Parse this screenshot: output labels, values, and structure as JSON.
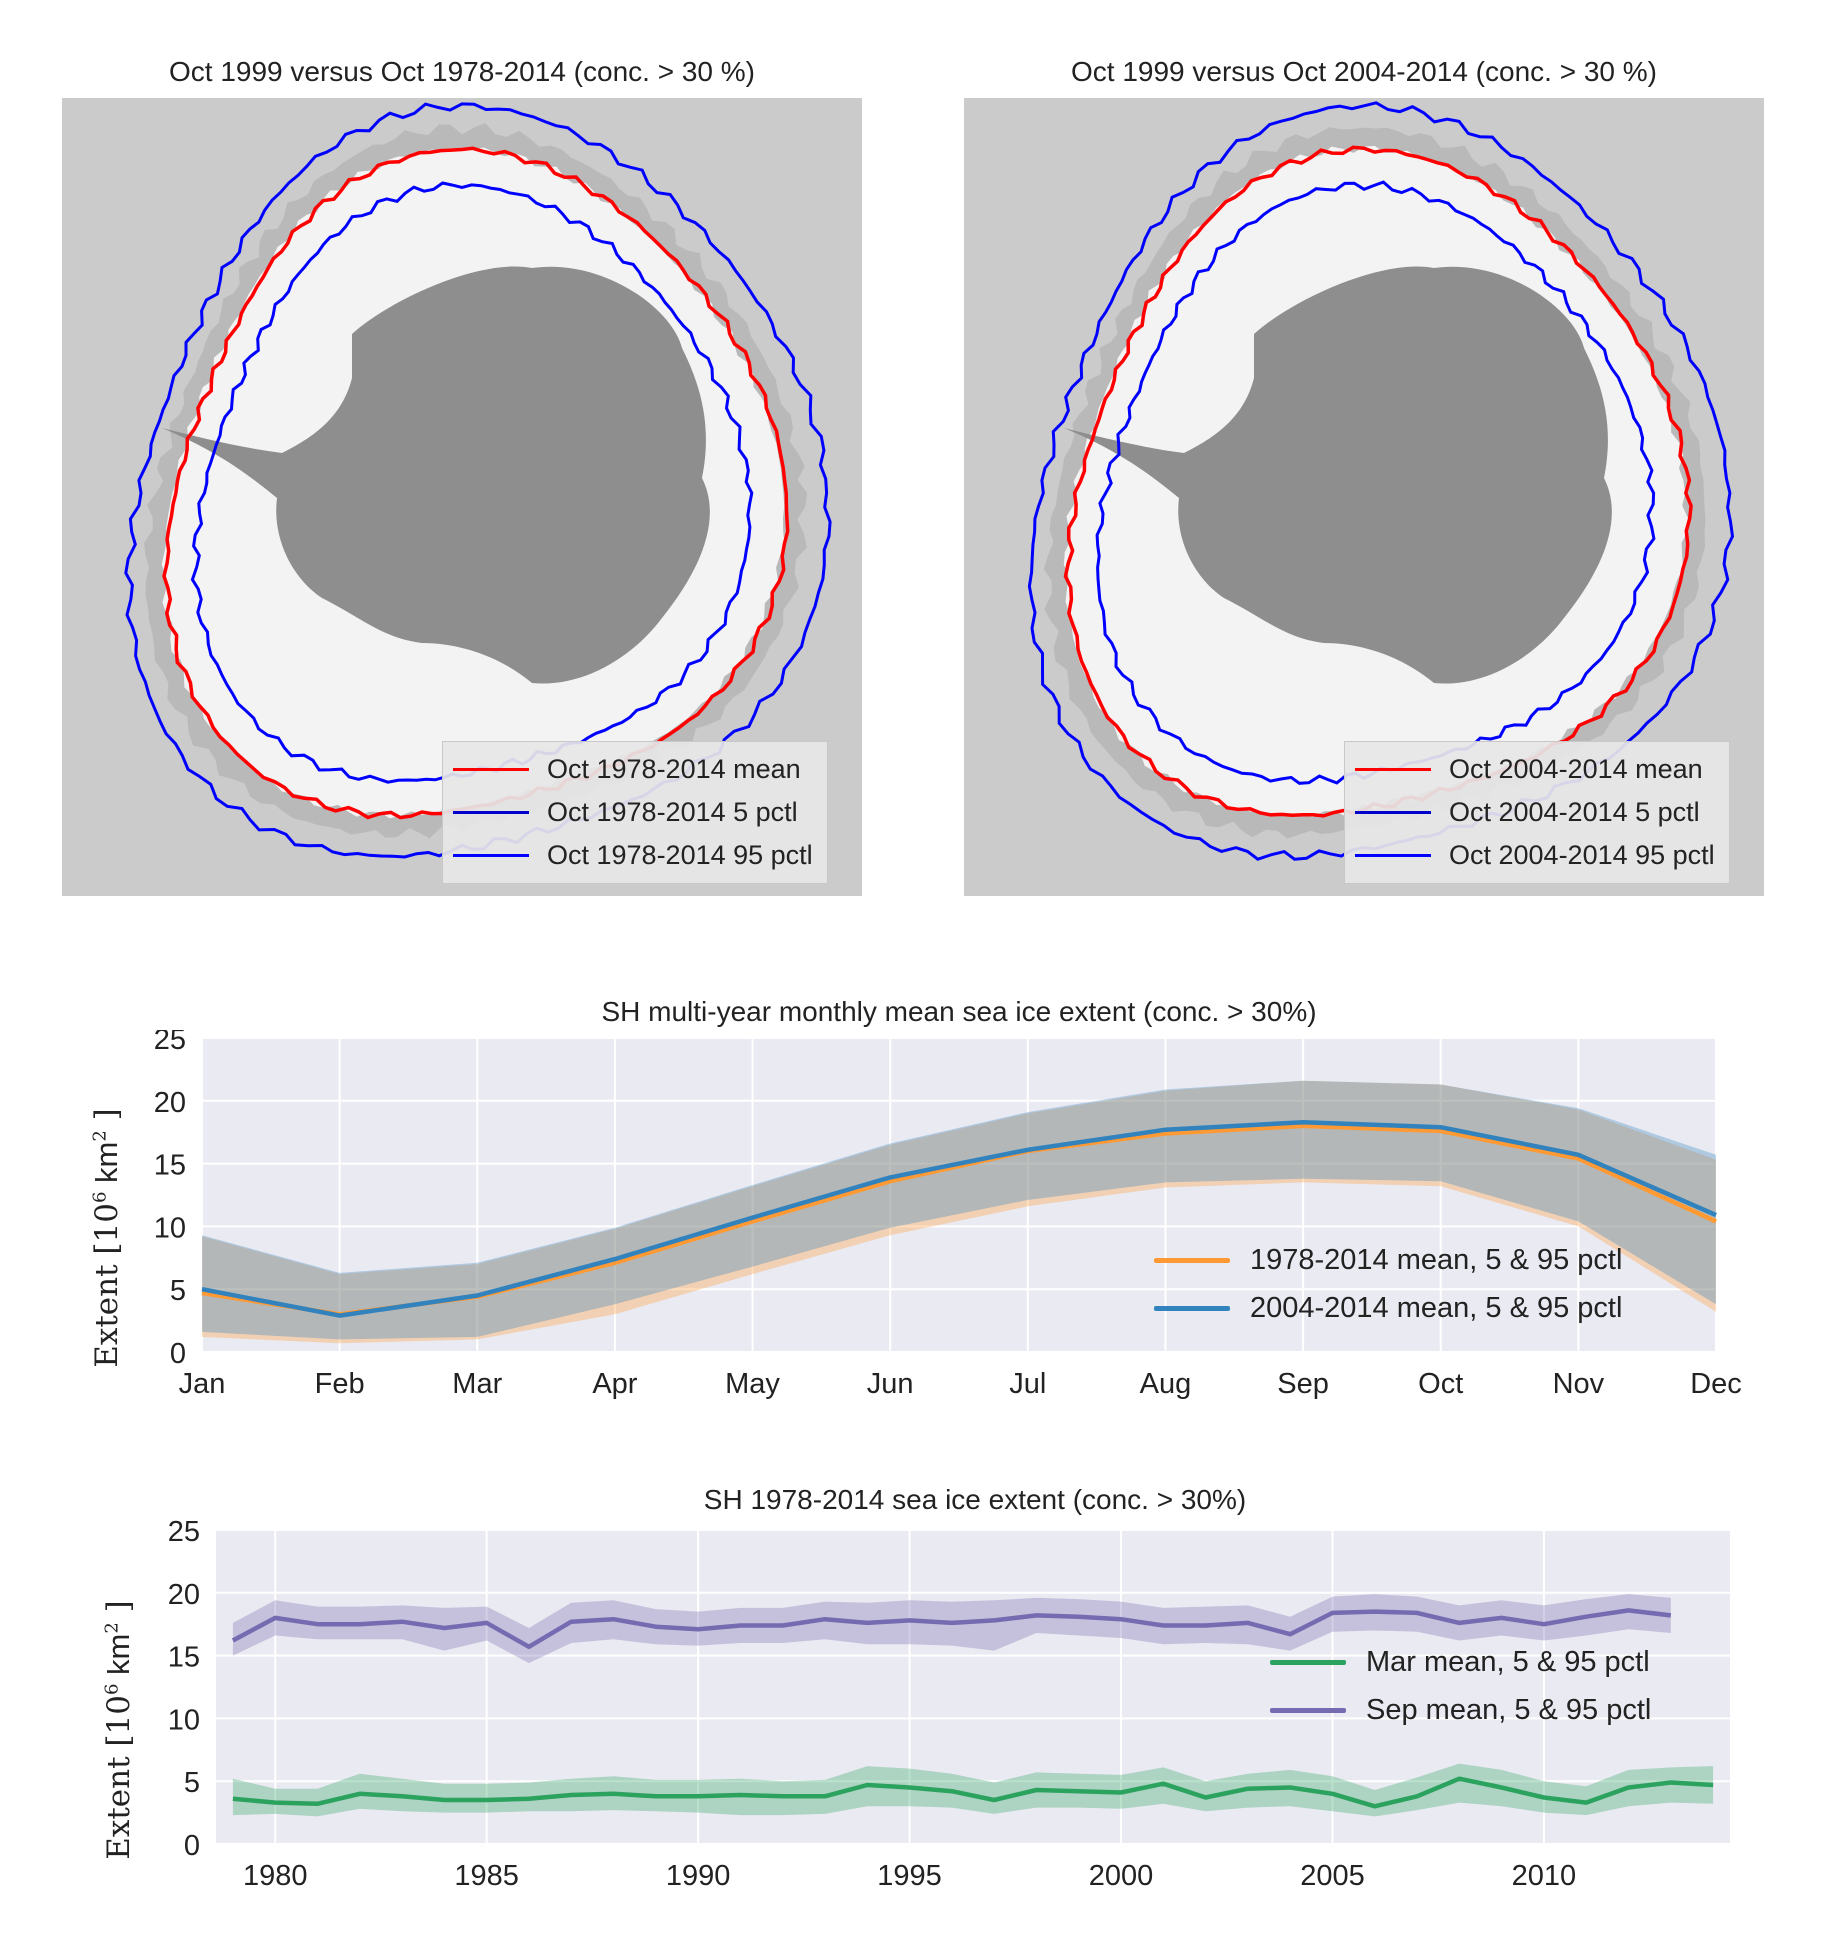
{
  "maps": [
    {
      "title": "Oct 1999 versus Oct 1978-2014 (conc. > 30 %)",
      "legend": [
        {
          "label": "Oct 1978-2014 mean",
          "color": "#ff0000"
        },
        {
          "label": "Oct 1978-2014 5 pctl",
          "color": "#0000cc"
        },
        {
          "label": "Oct 1978-2014 95 pctl",
          "color": "#0000ff"
        }
      ]
    },
    {
      "title": "Oct 1999 versus Oct 2004-2014 (conc. > 30 %)",
      "legend": [
        {
          "label": "Oct 2004-2014 mean",
          "color": "#ff0000"
        },
        {
          "label": "Oct 2004-2014 5 pctl",
          "color": "#0000cc"
        },
        {
          "label": "Oct 2004-2014 95 pctl",
          "color": "#0000ff"
        }
      ]
    }
  ],
  "colors": {
    "ocean": "#cbcbcb",
    "ice": "#f3f3f4",
    "land": "#8e8e8e",
    "mean_line": "#ff0000",
    "pctl_line": "#0000ff",
    "plot_bg": "#eaeaf2",
    "grid": "#ffffff"
  },
  "chart_data": [
    {
      "type": "line",
      "title": "SH multi-year monthly mean sea ice extent (conc. > 30%)",
      "ylabel_prefix": "Extent [10",
      "ylabel_exp": "6",
      "ylabel_unit": " km",
      "ylabel_exp2": "2",
      "ylabel_suffix": " ]",
      "categories": [
        "Jan",
        "Feb",
        "Mar",
        "Apr",
        "May",
        "Jun",
        "Jul",
        "Aug",
        "Sep",
        "Oct",
        "Nov",
        "Dec"
      ],
      "ylim": [
        0,
        25
      ],
      "yticks": [
        "0",
        "5",
        "10",
        "15",
        "20",
        "25"
      ],
      "grid": true,
      "legend_position": "lower-right",
      "series": [
        {
          "name": "1978-2014 mean, 5 & 95 pctl",
          "color": "#ff9933",
          "mean": [
            4.7,
            3.0,
            4.4,
            7.1,
            10.4,
            13.6,
            16.0,
            17.4,
            18.0,
            17.6,
            15.4,
            10.4
          ],
          "p5": [
            1.2,
            0.7,
            1.0,
            3.0,
            6.2,
            9.3,
            11.6,
            13.1,
            13.5,
            13.2,
            10.0,
            3.2
          ],
          "p95": [
            9.2,
            6.2,
            7.0,
            9.8,
            13.2,
            16.5,
            19.0,
            20.8,
            21.6,
            21.3,
            19.3,
            15.3
          ]
        },
        {
          "name": "2004-2014 mean, 5 & 95 pctl",
          "color": "#3182bd",
          "mean": [
            5.0,
            2.9,
            4.5,
            7.4,
            10.7,
            13.9,
            16.1,
            17.7,
            18.3,
            17.9,
            15.7,
            10.9
          ],
          "p5": [
            1.6,
            1.0,
            1.2,
            3.8,
            6.8,
            9.9,
            12.1,
            13.5,
            13.8,
            13.6,
            10.4,
            3.8
          ],
          "p95": [
            9.3,
            6.3,
            7.1,
            9.9,
            13.3,
            16.6,
            19.1,
            20.9,
            21.6,
            21.3,
            19.4,
            15.7
          ]
        }
      ]
    },
    {
      "type": "line",
      "title": "SH 1978-2014 sea ice extent (conc. > 30%)",
      "ylabel_prefix": "Extent [10",
      "ylabel_exp": "6",
      "ylabel_unit": " km",
      "ylabel_exp2": "2",
      "ylabel_suffix": " ]",
      "xlim": [
        1978.6,
        2014.4
      ],
      "xticks": [
        "1980",
        "1985",
        "1990",
        "1995",
        "2000",
        "2005",
        "2010"
      ],
      "ylim": [
        0,
        25
      ],
      "yticks": [
        "0",
        "5",
        "10",
        "15",
        "20",
        "25"
      ],
      "grid": true,
      "legend_position": "right",
      "series": [
        {
          "name": "Mar mean, 5 & 95 pctl",
          "color": "#2ca25f",
          "x": [
            1979,
            1980,
            1981,
            1982,
            1983,
            1984,
            1985,
            1986,
            1987,
            1988,
            1989,
            1990,
            1991,
            1992,
            1993,
            1994,
            1995,
            1996,
            1997,
            1998,
            1999,
            2000,
            2001,
            2002,
            2003,
            2004,
            2005,
            2006,
            2007,
            2008,
            2009,
            2010,
            2011,
            2012,
            2013,
            2014
          ],
          "mean": [
            3.6,
            3.3,
            3.2,
            4.0,
            3.8,
            3.5,
            3.5,
            3.6,
            3.9,
            4.0,
            3.8,
            3.8,
            3.9,
            3.8,
            3.8,
            4.7,
            4.5,
            4.2,
            3.5,
            4.3,
            4.2,
            4.1,
            4.8,
            3.7,
            4.4,
            4.5,
            4.0,
            3.0,
            3.8,
            5.2,
            4.5,
            3.7,
            3.3,
            4.5,
            4.9,
            4.7
          ],
          "p5": [
            2.3,
            2.4,
            2.2,
            2.8,
            2.6,
            2.5,
            2.5,
            2.6,
            2.6,
            2.7,
            2.6,
            2.5,
            2.3,
            2.3,
            2.4,
            3.0,
            3.0,
            2.9,
            2.4,
            2.9,
            2.9,
            2.8,
            3.2,
            2.6,
            2.9,
            3.0,
            2.6,
            2.2,
            2.7,
            3.3,
            3.0,
            2.5,
            2.3,
            3.0,
            3.3,
            3.2
          ],
          "p95": [
            5.2,
            4.4,
            4.4,
            5.6,
            5.2,
            4.8,
            4.8,
            4.9,
            5.2,
            5.4,
            5.1,
            5.1,
            5.2,
            5.0,
            5.1,
            6.2,
            6.0,
            5.6,
            4.9,
            5.7,
            5.6,
            5.5,
            6.1,
            5.0,
            5.6,
            5.9,
            5.4,
            4.3,
            5.3,
            6.4,
            5.9,
            5.0,
            4.6,
            5.9,
            6.1,
            6.2
          ]
        },
        {
          "name": "Sep mean, 5 & 95 pctl",
          "color": "#756bb1",
          "x": [
            1979,
            1980,
            1981,
            1982,
            1983,
            1984,
            1985,
            1986,
            1987,
            1988,
            1989,
            1990,
            1991,
            1992,
            1993,
            1994,
            1995,
            1996,
            1997,
            1998,
            1999,
            2000,
            2001,
            2002,
            2003,
            2004,
            2005,
            2006,
            2007,
            2008,
            2009,
            2010,
            2011,
            2012,
            2013
          ],
          "mean": [
            16.2,
            18.0,
            17.5,
            17.5,
            17.7,
            17.2,
            17.6,
            15.7,
            17.7,
            17.9,
            17.3,
            17.1,
            17.4,
            17.4,
            17.9,
            17.6,
            17.8,
            17.6,
            17.8,
            18.2,
            18.1,
            17.9,
            17.4,
            17.4,
            17.6,
            16.7,
            18.4,
            18.5,
            18.4,
            17.6,
            18.0,
            17.5,
            18.1,
            18.6,
            18.2
          ],
          "p5": [
            15.0,
            16.6,
            16.3,
            16.3,
            16.3,
            15.4,
            16.2,
            14.4,
            16.0,
            16.3,
            15.9,
            15.8,
            16.0,
            16.0,
            16.3,
            15.9,
            15.9,
            15.8,
            15.4,
            16.8,
            16.6,
            16.4,
            15.9,
            16.0,
            15.9,
            15.4,
            16.9,
            17.0,
            16.9,
            16.2,
            16.6,
            16.2,
            16.6,
            17.1,
            16.8
          ],
          "p95": [
            17.6,
            19.4,
            18.9,
            18.9,
            19.0,
            18.8,
            18.9,
            17.2,
            19.2,
            19.4,
            18.7,
            18.5,
            18.8,
            18.8,
            19.3,
            19.2,
            19.4,
            19.3,
            19.4,
            19.6,
            19.5,
            19.3,
            18.8,
            18.9,
            19.0,
            18.1,
            19.7,
            19.9,
            19.7,
            19.0,
            19.4,
            19.0,
            19.5,
            19.9,
            19.6
          ]
        }
      ]
    }
  ]
}
